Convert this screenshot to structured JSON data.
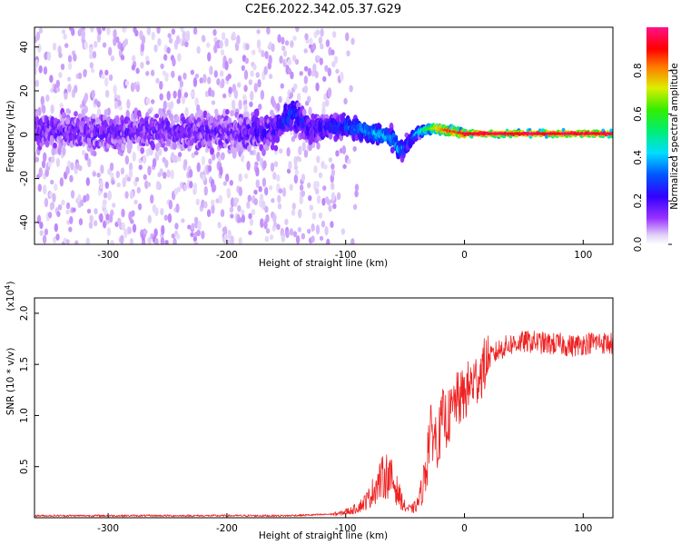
{
  "title": "C2E6.2022.342.05.37.G29",
  "chart_data": [
    {
      "type": "heatmap",
      "name": "spectrogram",
      "xlabel": "Height of straight line (km)",
      "ylabel": "Frequency (Hz)",
      "xlim": [
        -362,
        125
      ],
      "ylim": [
        -50,
        49
      ],
      "xticks": [
        -300,
        -200,
        -100,
        0,
        100
      ],
      "yticks": [
        -40,
        -20,
        0,
        20,
        40
      ],
      "colorbar": {
        "label": "Normalized spectral amplitude",
        "range": [
          0,
          1
        ],
        "ticks": [
          "0.0",
          "0.2",
          "0.4",
          "0.6",
          "0.8"
        ]
      },
      "ridge": {
        "description": "Frequency of the dominant (strongest) spectral line versus height",
        "x": [
          -362,
          -300,
          -250,
          -200,
          -160,
          -145,
          -130,
          -115,
          -100,
          -90,
          -80,
          -70,
          -60,
          -55,
          -50,
          -45,
          -40,
          -35,
          -25,
          -15,
          -5,
          0,
          20,
          50,
          100,
          125
        ],
        "y": [
          2,
          1,
          2,
          1,
          2,
          10,
          2,
          4,
          4,
          3,
          1,
          0,
          -2,
          -8,
          -5,
          -2,
          1,
          2,
          3,
          2,
          1,
          0.5,
          0.5,
          0.5,
          0.5,
          0.5
        ],
        "amplitude": [
          0.15,
          0.15,
          0.15,
          0.15,
          0.2,
          0.3,
          0.2,
          0.25,
          0.3,
          0.35,
          0.4,
          0.45,
          0.35,
          0.4,
          0.3,
          0.25,
          0.4,
          0.5,
          0.75,
          0.85,
          0.9,
          0.95,
          0.95,
          0.95,
          0.95,
          0.95
        ],
        "spread_hz": [
          12,
          12,
          12,
          12,
          12,
          10,
          9,
          8,
          7,
          6,
          6,
          5,
          6,
          6,
          5,
          4,
          3,
          2,
          2,
          2,
          2,
          2,
          2,
          2,
          2,
          2
        ]
      }
    },
    {
      "type": "line",
      "name": "snr",
      "xlabel": "Height of straight line (km)",
      "ylabel": "SNR (10 * v/v)",
      "scale_label": "(x10",
      "scale_exponent": "4",
      "xlim": [
        -362,
        125
      ],
      "ylim": [
        0,
        2.15
      ],
      "xticks": [
        -300,
        -200,
        -100,
        0,
        100
      ],
      "yticks": [
        "0.5",
        "1.0",
        "1.5",
        "2.0"
      ],
      "color": "#ee2222",
      "series": [
        {
          "name": "SNR",
          "x": [
            -362,
            -300,
            -200,
            -150,
            -120,
            -105,
            -100,
            -95,
            -90,
            -85,
            -80,
            -75,
            -70,
            -65,
            -60,
            -55,
            -50,
            -45,
            -40,
            -35,
            -32,
            -30,
            -28,
            -25,
            -22,
            -20,
            -18,
            -15,
            -12,
            -10,
            -8,
            -5,
            0,
            5,
            10,
            15,
            20,
            25,
            30,
            40,
            50,
            60,
            70,
            80,
            90,
            100,
            110,
            125
          ],
          "y": [
            0.02,
            0.02,
            0.02,
            0.02,
            0.03,
            0.04,
            0.06,
            0.07,
            0.1,
            0.14,
            0.2,
            0.3,
            0.38,
            0.42,
            0.35,
            0.22,
            0.1,
            0.08,
            0.12,
            0.3,
            0.55,
            0.75,
            0.85,
            0.8,
            0.75,
            0.9,
            1.0,
            0.95,
            1.0,
            1.05,
            1.15,
            1.15,
            1.2,
            1.3,
            1.35,
            1.45,
            1.55,
            1.6,
            1.65,
            1.7,
            1.72,
            1.72,
            1.7,
            1.7,
            1.68,
            1.7,
            1.72,
            1.7
          ]
        }
      ]
    }
  ]
}
